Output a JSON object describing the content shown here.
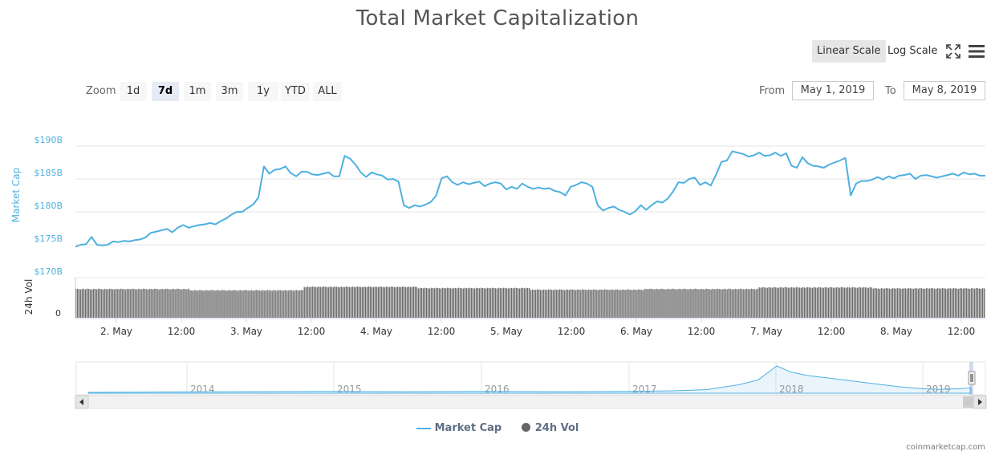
{
  "title": "Total Market Capitalization",
  "scale_buttons": {
    "linear": "Linear Scale",
    "log": "Log Scale",
    "active": "linear"
  },
  "toolbar": {
    "fullscreen_icon": "fullscreen-icon",
    "menu_icon": "hamburger-menu-icon"
  },
  "range_selector": {
    "zoom_label": "Zoom",
    "buttons": [
      "1d",
      "7d",
      "1m",
      "3m",
      "1y",
      "YTD",
      "ALL"
    ],
    "active": "7d",
    "from_label": "From",
    "from_value": "May 1, 2019",
    "to_label": "To",
    "to_value": "May 8, 2019"
  },
  "legend": [
    {
      "label": "Market Cap",
      "color": "#4fb0e0",
      "symbol": "line"
    },
    {
      "label": "24h Vol",
      "color": "#666666",
      "symbol": "dot"
    }
  ],
  "credits": "coinmarketcap.com",
  "chart_data": {
    "type": "line",
    "title": "Total Market Capitalization",
    "x_tick_labels": [
      "2. May",
      "12:00",
      "3. May",
      "12:00",
      "4. May",
      "12:00",
      "5. May",
      "12:00",
      "6. May",
      "12:00",
      "7. May",
      "12:00",
      "8. May",
      "12:00"
    ],
    "x_range": [
      "May 1, 2019 ~14:00",
      "May 8, 2019 ~17:00"
    ],
    "grid": true,
    "legend_position": "bottom-center",
    "series": [
      {
        "name": "Market Cap",
        "color": "#4fb0e0",
        "ylabel": "Market Cap",
        "y_tick_labels": [
          "$170B",
          "$175B",
          "$180B",
          "$185B",
          "$190B"
        ],
        "ylim": [
          170,
          190
        ],
        "unit": "B USD",
        "points_hours": [
          0,
          1,
          2,
          3,
          4,
          5,
          6,
          7,
          8,
          9,
          10,
          11,
          12,
          13,
          14,
          15,
          16,
          17,
          18,
          19,
          20,
          21,
          22,
          23,
          24,
          25,
          26,
          27,
          28,
          29,
          30,
          31,
          32,
          33,
          34,
          35,
          36,
          37,
          38,
          39,
          40,
          41,
          42,
          43,
          44,
          45,
          46,
          47,
          48,
          49,
          50,
          51,
          52,
          53,
          54,
          55,
          56,
          57,
          58,
          59,
          60,
          61,
          62,
          63,
          64,
          65,
          66,
          67,
          68,
          69,
          70,
          71,
          72,
          73,
          74,
          75,
          76,
          77,
          78,
          79,
          80,
          81,
          82,
          83,
          84,
          85,
          86,
          87,
          88,
          89,
          90,
          91,
          92,
          93,
          94,
          95,
          96,
          97,
          98,
          99,
          100,
          101,
          102,
          103,
          104,
          105,
          106,
          107,
          108,
          109,
          110,
          111,
          112,
          113,
          114,
          115,
          116,
          117,
          118,
          119,
          120,
          121,
          122,
          123,
          124,
          125,
          126,
          127,
          128,
          129,
          130,
          131,
          132,
          133,
          134,
          135,
          136,
          137,
          138,
          139,
          140,
          141,
          142,
          143,
          144,
          145,
          146,
          147,
          148,
          149,
          150,
          151,
          152,
          153,
          154,
          155,
          156,
          157,
          158,
          159,
          160,
          161,
          162,
          163,
          164,
          165,
          166,
          167
        ],
        "values": [
          174.7,
          175.0,
          175.1,
          176.2,
          175.0,
          174.9,
          175.0,
          175.5,
          175.4,
          175.6,
          175.5,
          175.7,
          175.8,
          176.1,
          176.8,
          177.0,
          177.2,
          177.4,
          176.9,
          177.6,
          178.0,
          177.6,
          177.8,
          178.0,
          178.1,
          178.3,
          178.1,
          178.6,
          179.0,
          179.6,
          180.0,
          180.0,
          180.6,
          181.1,
          182.2,
          186.9,
          185.8,
          186.4,
          186.5,
          186.9,
          185.9,
          185.4,
          186.1,
          186.1,
          185.7,
          185.6,
          185.8,
          186.0,
          185.4,
          185.4,
          188.5,
          188.1,
          187.2,
          186.0,
          185.3,
          186.0,
          185.7,
          185.5,
          184.9,
          185.0,
          184.6,
          181.0,
          180.6,
          181.0,
          180.8,
          181.1,
          181.5,
          182.5,
          185.1,
          185.4,
          184.5,
          184.1,
          184.5,
          184.2,
          184.4,
          184.6,
          183.9,
          184.3,
          184.5,
          184.3,
          183.4,
          183.8,
          183.5,
          184.3,
          183.8,
          183.5,
          183.7,
          183.5,
          183.6,
          183.2,
          183.0,
          182.5,
          183.8,
          184.1,
          184.5,
          184.3,
          183.8,
          181.0,
          180.2,
          180.6,
          180.8,
          180.3,
          180.0,
          179.6,
          180.1,
          181.0,
          180.3,
          181.0,
          181.6,
          181.4,
          182.0,
          183.1,
          184.5,
          184.4,
          185.0,
          185.2,
          184.1,
          184.5,
          184.0,
          185.7,
          187.6,
          187.8,
          189.2,
          189.0,
          188.8,
          188.4,
          188.6,
          189.0,
          188.5,
          188.6,
          189.0,
          188.5,
          188.9,
          187.0,
          186.7,
          188.3,
          187.4,
          187.0,
          186.9,
          186.7,
          187.2,
          187.5,
          187.8,
          188.2,
          182.5,
          184.3,
          184.7,
          184.7,
          184.9,
          185.3,
          184.9,
          185.4,
          185.1,
          185.5,
          185.6,
          185.8,
          185.0,
          185.5,
          185.6,
          185.4,
          185.2,
          185.4,
          185.6,
          185.8,
          185.5,
          186.0,
          185.7,
          185.8,
          185.5,
          185.5
        ]
      },
      {
        "name": "24h Vol",
        "color": "#666666",
        "ylabel": "24h Vol",
        "y_tick_labels": [
          "0"
        ],
        "note": "dense vertical bars; height is a relative level (max = 1) since no upper tick is printed",
        "relative_levels_per_day": [
          {
            "day": "May 1-2",
            "level": 0.93
          },
          {
            "day": "May 2-3",
            "level": 0.89
          },
          {
            "day": "May 3 (12:00)-4",
            "level": 1.0
          },
          {
            "day": "May 4-5",
            "level": 0.96
          },
          {
            "day": "May 5-6",
            "level": 0.91
          },
          {
            "day": "May 6-7",
            "level": 0.93
          },
          {
            "day": "May 7-8",
            "level": 0.98
          },
          {
            "day": "May 8",
            "level": 0.95
          }
        ]
      }
    ],
    "navigator": {
      "x_tick_labels": [
        "2014",
        "2015",
        "2016",
        "2017",
        "2018",
        "2019"
      ],
      "peak_label_year": "2018",
      "values_relative": [
        0.03,
        0.04,
        0.05,
        0.06,
        0.05,
        0.06,
        0.05,
        0.06,
        0.08,
        0.12,
        0.28,
        0.45,
        0.92,
        0.72,
        0.6,
        0.52,
        0.42,
        0.32,
        0.22,
        0.16,
        0.13,
        0.15,
        0.18
      ]
    }
  }
}
